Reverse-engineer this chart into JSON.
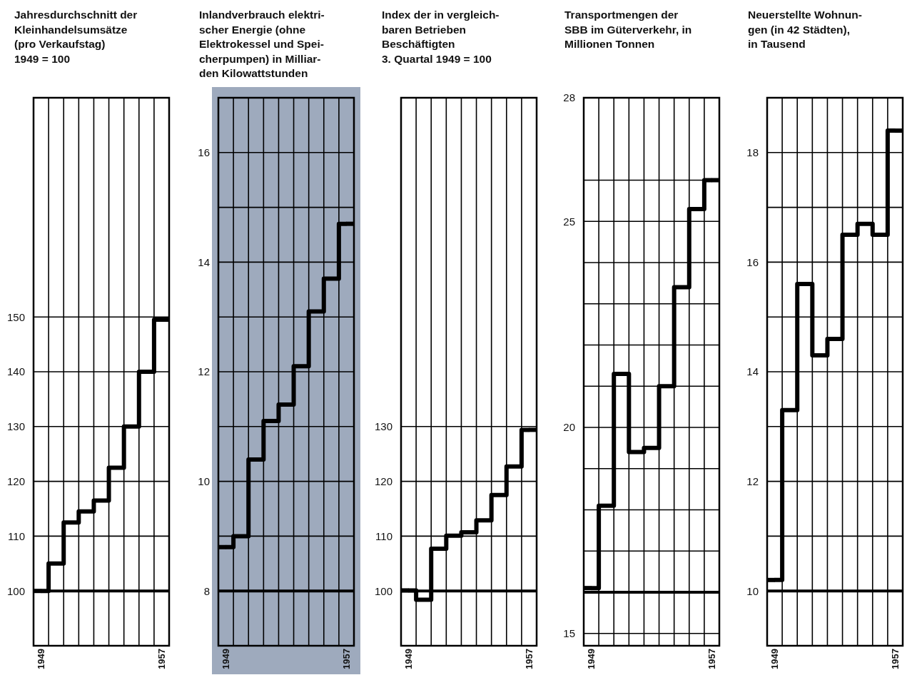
{
  "chart_data": [
    {
      "type": "step",
      "title": "Jahresdurchschnitt der\nKleinhandelsumsätze\n(pro Verkaufstag)\n1949 = 100",
      "categories": [
        "1949",
        null,
        null,
        null,
        null,
        null,
        null,
        null,
        "1957"
      ],
      "series": [
        {
          "color": "#000000",
          "values": [
            100,
            105,
            112.5,
            114.5,
            116.5,
            122.5,
            130,
            140,
            149.5
          ]
        }
      ],
      "ylim": [
        90,
        190
      ],
      "yticks": [
        100,
        110,
        120,
        130,
        140,
        150
      ],
      "grid": true,
      "ref_lines": [
        {
          "axis": "y",
          "value": 100,
          "color": "#000000"
        }
      ]
    },
    {
      "type": "step",
      "title": "Inlandverbrauch elektri-\nscher Energie (ohne\nElektrokessel und Spei-\ncherpumpen) in Milliar-\nden Kilowattstunden",
      "categories": [
        "1949",
        null,
        null,
        null,
        null,
        null,
        null,
        null,
        "1957"
      ],
      "series": [
        {
          "color": "#000000",
          "values": [
            8.8,
            9.0,
            10.4,
            11.1,
            11.4,
            12.1,
            13.1,
            13.7,
            14.7
          ]
        }
      ],
      "ylim": [
        7,
        17
      ],
      "yticks": [
        8,
        {
          "value": 9,
          "label": null
        },
        10,
        {
          "value": 11,
          "label": null
        },
        12,
        {
          "value": 13,
          "label": null
        },
        14,
        {
          "value": 15,
          "label": null
        },
        16
      ],
      "grid": true,
      "ref_lines": [
        {
          "axis": "y",
          "value": 8,
          "color": "#000000"
        }
      ],
      "bands": [
        {
          "axis": "y",
          "from": 7,
          "to": 17,
          "color": "#9eaabd"
        }
      ]
    },
    {
      "type": "step",
      "title": "Index der in vergleich-\nbaren Betrieben\nBeschäftigten\n3. Quartal 1949 = 100",
      "categories": [
        "1949",
        null,
        null,
        null,
        null,
        null,
        null,
        null,
        "1957"
      ],
      "series": [
        {
          "color": "#000000",
          "values": [
            100.1,
            98.4,
            107.7,
            110.1,
            110.7,
            112.9,
            117.5,
            122.7,
            129.4
          ]
        }
      ],
      "ylim": [
        90,
        190
      ],
      "yticks": [
        100,
        110,
        120,
        130
      ],
      "grid": true,
      "ref_lines": [
        {
          "axis": "y",
          "value": 100,
          "color": "#000000"
        }
      ]
    },
    {
      "type": "step",
      "title": "Transportmengen der\nSBB im Güterverkehr, in\nMillionen Tonnen",
      "categories": [
        "1949",
        null,
        null,
        null,
        null,
        null,
        null,
        null,
        "1957"
      ],
      "series": [
        {
          "color": "#000000",
          "values": [
            16.1,
            18.1,
            21.3,
            19.4,
            19.5,
            21.0,
            23.4,
            25.3,
            26.0
          ]
        }
      ],
      "ylim": [
        14.7,
        28
      ],
      "yticks": [
        15,
        {
          "value": 16,
          "label": null
        },
        {
          "value": 17,
          "label": null
        },
        {
          "value": 18,
          "label": null
        },
        {
          "value": 19,
          "label": null
        },
        20,
        {
          "value": 21,
          "label": null
        },
        {
          "value": 22,
          "label": null
        },
        {
          "value": 23,
          "label": null
        },
        {
          "value": 24,
          "label": null
        },
        25,
        {
          "value": 26,
          "label": null
        },
        28
      ],
      "grid": true,
      "ref_lines": [
        {
          "axis": "y",
          "value": 16,
          "color": "#000000"
        }
      ]
    },
    {
      "type": "step",
      "title": "Neuerstellte Wohnun-\ngen (in 42 Städten),\nin Tausend",
      "categories": [
        "1949",
        null,
        null,
        null,
        null,
        null,
        null,
        null,
        "1957"
      ],
      "series": [
        {
          "color": "#000000",
          "values": [
            10.2,
            13.3,
            15.6,
            14.3,
            14.6,
            16.5,
            16.7,
            16.5,
            18.4
          ]
        }
      ],
      "ylim": [
        9,
        19
      ],
      "yticks": [
        10,
        {
          "value": 11,
          "label": null
        },
        12,
        {
          "value": 13,
          "label": null
        },
        14,
        {
          "value": 15,
          "label": null
        },
        16,
        {
          "value": 17,
          "label": null
        },
        18
      ],
      "grid": true,
      "ref_lines": [
        {
          "axis": "y",
          "value": 10,
          "color": "#000000"
        }
      ]
    }
  ]
}
